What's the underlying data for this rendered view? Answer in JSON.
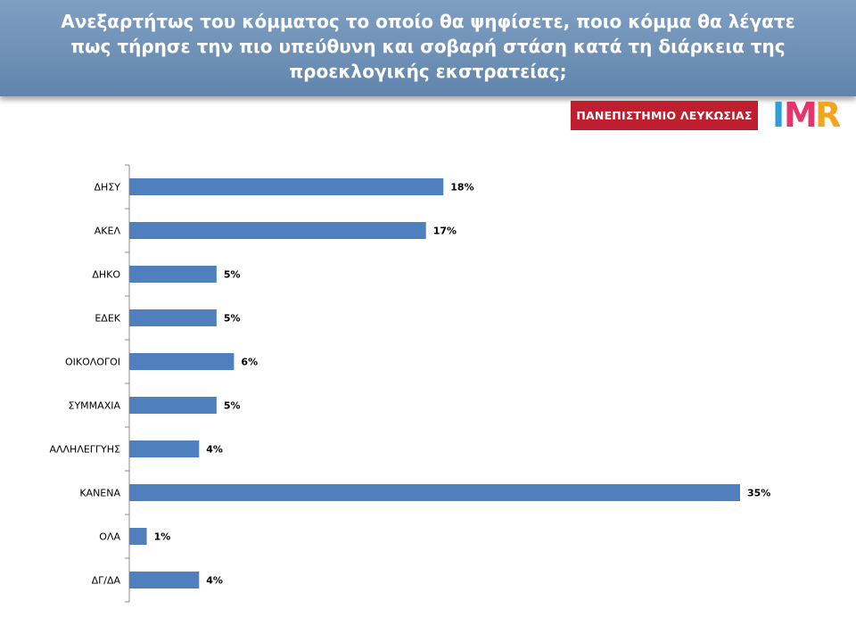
{
  "header": {
    "title": "Ανεξαρτήτως του κόμματος το οποίο θα ψηφίσετε, ποιο κόμμα θα λέγατε πως τήρησε την πιο υπεύθυνη και σοβαρή στάση κατά τη διάρκεια της προεκλογικής εκστρατείας;"
  },
  "logos": {
    "university": "ΠΑΝΕΠΙΣΤΗΜΙΟ ΛΕΥΚΩΣΙΑΣ",
    "imr_letters": [
      "I",
      "M",
      "R"
    ],
    "imr_colors": [
      "#2e9fd6",
      "#e8336d",
      "#f2a51e"
    ]
  },
  "chart_data": {
    "type": "bar",
    "orientation": "horizontal",
    "categories": [
      "ΔΗΣΥ",
      "ΑΚΕΛ",
      "ΔΗΚΟ",
      "ΕΔΕΚ",
      "ΟΙΚΟΛΟΓΟΙ",
      "ΣΥΜΜΑΧΙΑ",
      "ΑΛΛΗΛΕΓΓΥΗΣ",
      "ΚΑΝΕΝΑ",
      "ΟΛΑ",
      "ΔΓ/ΔΑ"
    ],
    "values": [
      18,
      17,
      5,
      5,
      6,
      5,
      4,
      35,
      1,
      4
    ],
    "data_labels": [
      "18%",
      "17%",
      "5%",
      "5%",
      "6%",
      "5%",
      "4%",
      "35%",
      "1%",
      "4%"
    ],
    "xlim": [
      0,
      35
    ],
    "bar_color": "#4f7fbc",
    "grid": false,
    "legend": "none"
  }
}
